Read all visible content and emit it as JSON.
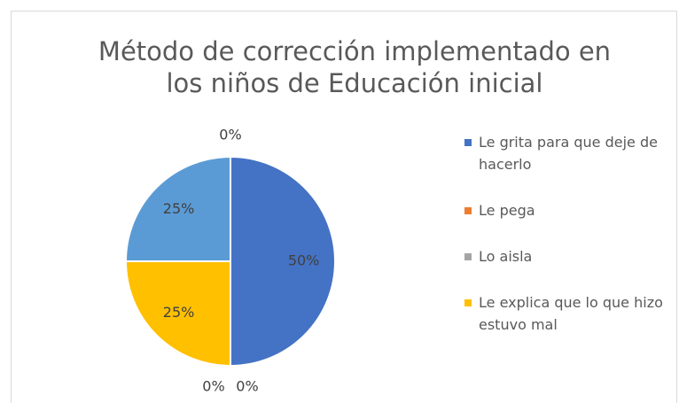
{
  "chart_data": {
    "type": "pie",
    "title": "Método de corrección implementado en los niños de Educación inicial",
    "categories": [
      "Le grita para que deje de hacerlo",
      "Le pega",
      "Lo aisla",
      "Le explica que lo que hizo estuvo mal",
      null,
      null
    ],
    "values": [
      50,
      0,
      0,
      25,
      25,
      0
    ],
    "value_labels": [
      "50%",
      "0%",
      "0%",
      "25%",
      "25%",
      "0%"
    ],
    "colors": [
      "#4472c4",
      "#ed7d31",
      "#a5a5a5",
      "#ffc000",
      "#5b9bd5",
      "#70ad47"
    ],
    "legend": "right"
  }
}
